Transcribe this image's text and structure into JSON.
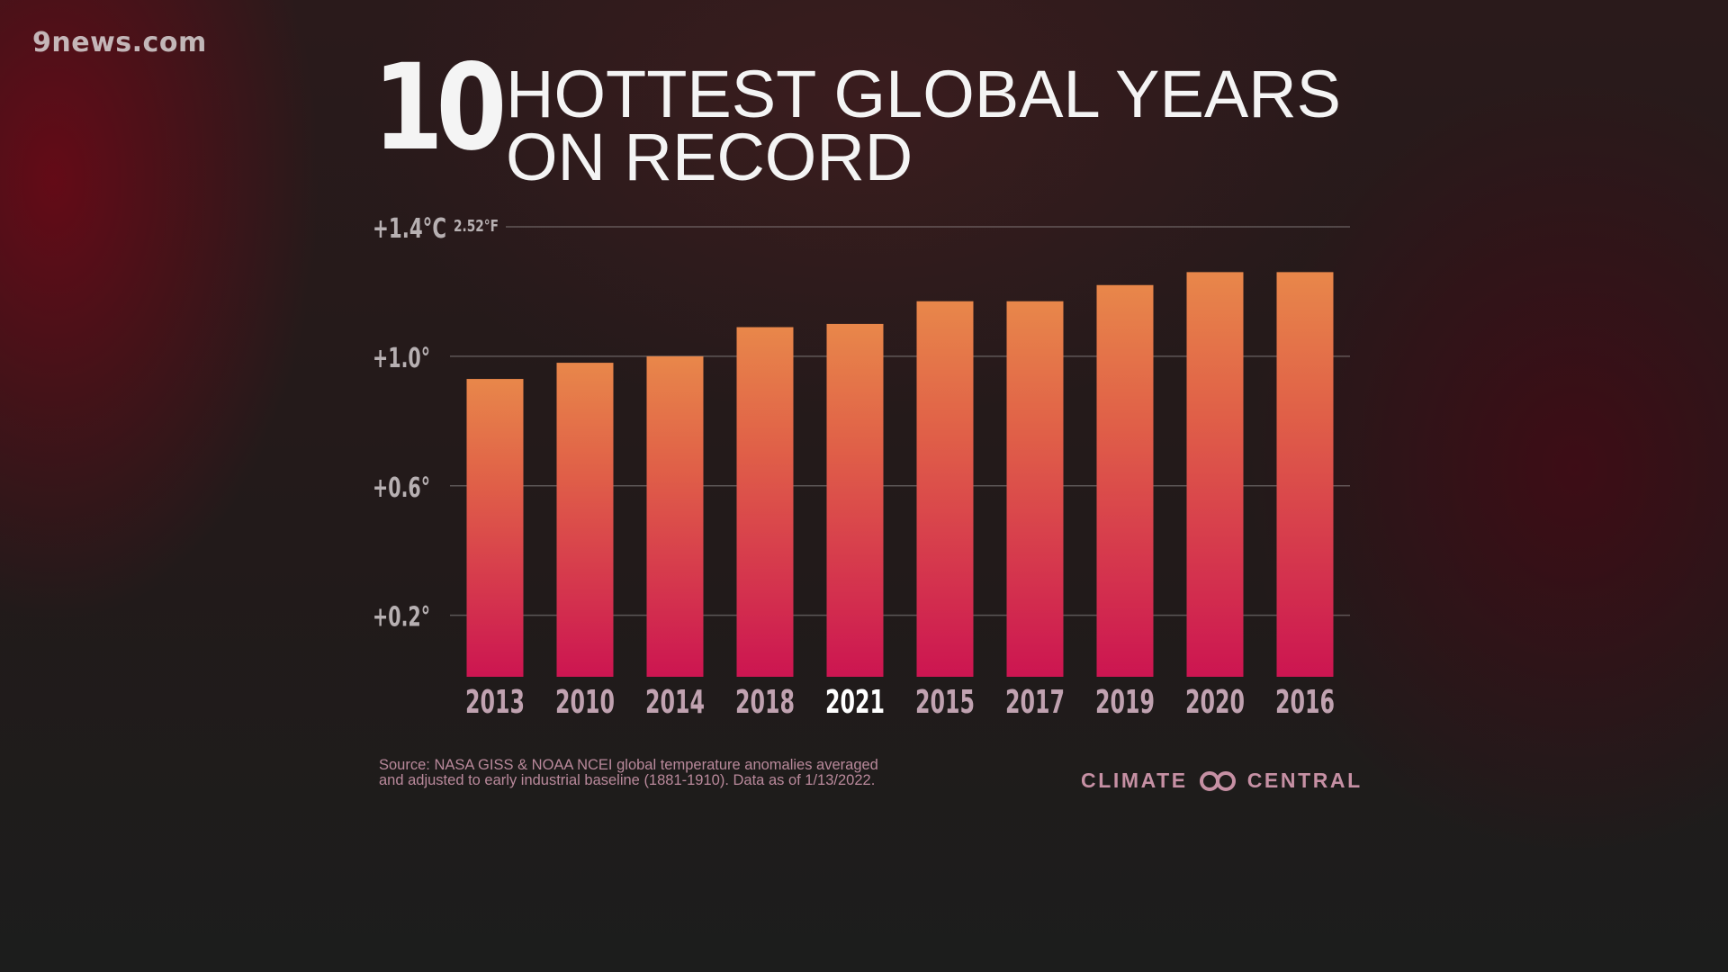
{
  "watermark": "9news.com",
  "title": {
    "number": "10",
    "line1": "HOTTEST GLOBAL YEARS",
    "line2": "ON RECORD"
  },
  "source": {
    "line1": "Source: NASA GISS & NOAA NCEI global temperature anomalies averaged",
    "line2": "and adjusted to early industrial baseline (1881-1910). Data as of 1/13/2022."
  },
  "brand": {
    "left": "CLIMATE",
    "right": "CENTRAL",
    "logo_icon": "linked-rings-icon"
  },
  "colors": {
    "bar_top": "#e8874a",
    "bar_bottom": "#cc1551",
    "tick_label": "#b7b0b2",
    "category_label": "#c0a2b0",
    "highlight_label": "#ffffff",
    "brand": "#c690a4"
  },
  "chart_data": {
    "type": "bar",
    "categories": [
      "2013",
      "2010",
      "2014",
      "2018",
      "2021",
      "2015",
      "2017",
      "2019",
      "2020",
      "2016"
    ],
    "values": [
      0.93,
      0.98,
      1.0,
      1.09,
      1.1,
      1.17,
      1.17,
      1.22,
      1.26,
      1.26
    ],
    "highlight_category": "2021",
    "unit": "°C",
    "ylim": [
      0.01,
      1.4
    ],
    "y_ticks": [
      {
        "value": 1.4,
        "label": "+1.4°C",
        "secondary": "2.52°F"
      },
      {
        "value": 1.0,
        "label": "+1.0°"
      },
      {
        "value": 0.6,
        "label": "+0.6°"
      },
      {
        "value": 0.2,
        "label": "+0.2°"
      }
    ],
    "grid": true
  }
}
